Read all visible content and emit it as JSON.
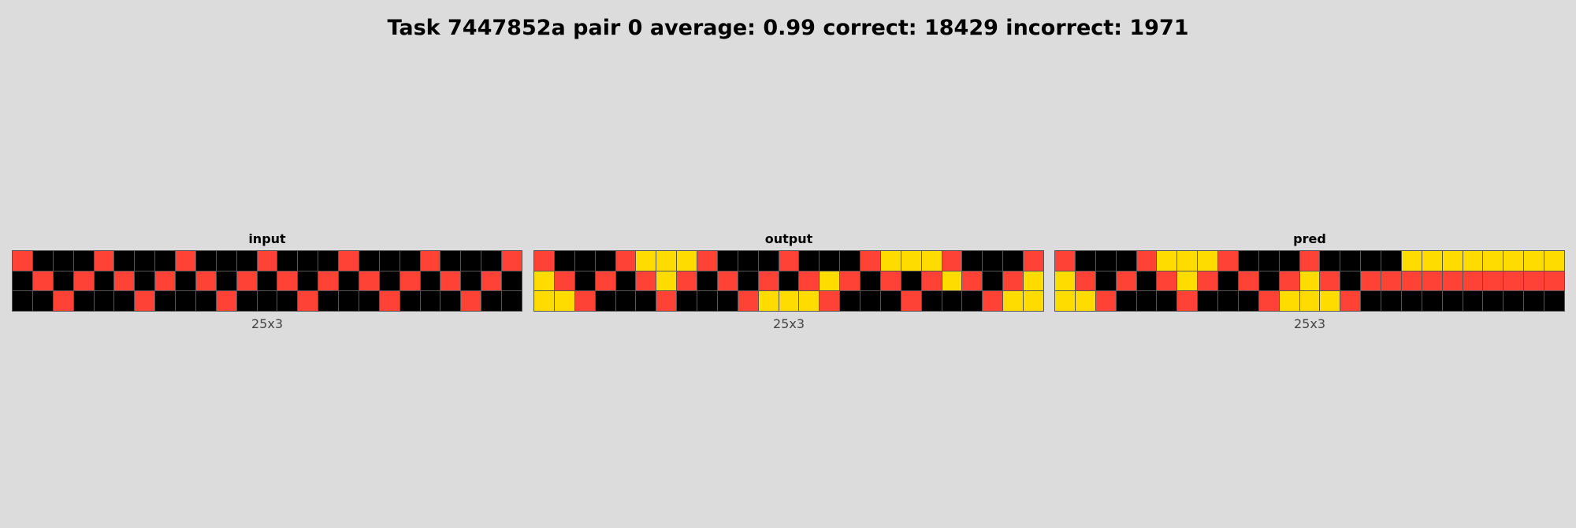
{
  "title": "Task 7447852a pair 0 average: 0.99 correct: 18429 incorrect: 1971",
  "palette": {
    "0": "#000000",
    "2": "#ff4136",
    "4": "#ffdc00"
  },
  "panels": [
    {
      "label": "input",
      "dims": "25x3",
      "grid": [
        "2000200020002000200020002",
        "0202020202020202020202020",
        "0020002000200020002000200"
      ]
    },
    {
      "label": "output",
      "dims": "25x3",
      "grid": [
        "2000244420002000244420002",
        "4202024202020242020242024",
        "4420002000244420002000244"
      ]
    },
    {
      "label": "pred",
      "dims": "25x3",
      "grid": [
        "2000244420002000044444444",
        "4202024202024202222222222",
        "4420002000244420000000000"
      ]
    }
  ]
}
